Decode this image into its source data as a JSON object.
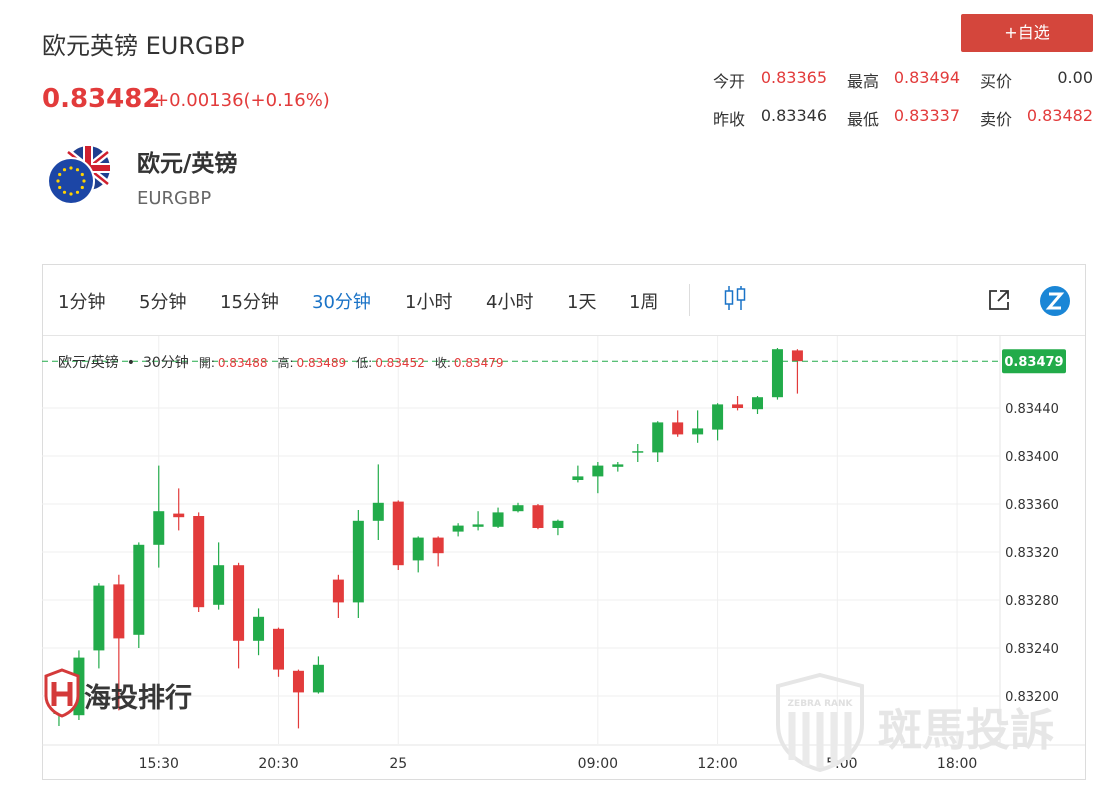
{
  "header": {
    "title": "欧元英镑 EURGBP",
    "price": "0.83482",
    "change": "+0.00136(+0.16%)",
    "button": "+自选"
  },
  "stats": [
    [
      {
        "label": "今开",
        "value": "0.83365"
      },
      {
        "label": "最高",
        "value": "0.83494"
      },
      {
        "label": "买价",
        "value": "0.00"
      }
    ],
    [
      {
        "label": "昨收",
        "value": "0.83346"
      },
      {
        "label": "最低",
        "value": "0.83337"
      },
      {
        "label": "卖价",
        "value": "0.83482"
      }
    ]
  ],
  "instrument": {
    "name": "欧元/英镑",
    "code": "EURGBP"
  },
  "toolbar": {
    "intervals": [
      "1分钟",
      "5分钟",
      "15分钟",
      "30分钟",
      "1小时",
      "4小时",
      "1天",
      "1周"
    ],
    "active": 3
  },
  "watermarks": [
    "海投排行",
    "ZEBRA RANK",
    "斑馬投訴"
  ],
  "chart_data": {
    "type": "candlestick",
    "legend": {
      "symbol": "欧元/英镑",
      "separator": "•",
      "interval": "30分钟",
      "fields": [
        {
          "label": "開:",
          "value": "0.83488"
        },
        {
          "label": "高:",
          "value": "0.83489"
        },
        {
          "label": "低:",
          "value": "0.83452"
        },
        {
          "label": "收:",
          "value": "0.83479"
        }
      ]
    },
    "categories": [
      null,
      null,
      null,
      null,
      null,
      "15:30",
      null,
      null,
      null,
      null,
      null,
      "20:30",
      null,
      null,
      null,
      null,
      null,
      "25",
      null,
      null,
      null,
      null,
      null,
      null,
      null,
      null,
      null,
      "09:00",
      null,
      null,
      null,
      null,
      null,
      "12:00",
      null,
      null,
      null,
      null,
      null,
      "15:00",
      null,
      null,
      null,
      null,
      null,
      "18:00",
      null,
      null
    ],
    "open": [
      0.83185,
      0.83184,
      0.83238,
      0.83293,
      0.83251,
      0.83326,
      0.83352,
      0.8335,
      0.83276,
      0.83309,
      0.83246,
      0.83256,
      0.83221,
      0.83203,
      0.83297,
      0.83278,
      0.83346,
      0.83362,
      0.83313,
      0.83332,
      0.83337,
      0.83341,
      0.83341,
      0.83354,
      0.83359,
      0.8334,
      0.8338,
      0.83383,
      0.83391,
      0.83403,
      0.83403,
      0.83428,
      0.83418,
      0.83422,
      0.83443,
      0.83439,
      0.83449,
      0.83488,
      null,
      null,
      null,
      null,
      null,
      null,
      null,
      null,
      null,
      null
    ],
    "high": [
      0.8321,
      0.83238,
      0.83294,
      0.83301,
      0.83328,
      0.83392,
      0.83373,
      0.83353,
      0.83328,
      0.83311,
      0.83273,
      0.83257,
      0.83222,
      0.83233,
      0.83301,
      0.83355,
      0.83393,
      0.83363,
      0.83333,
      0.83333,
      0.83344,
      0.83354,
      0.83357,
      0.83361,
      0.8336,
      0.83347,
      0.83392,
      0.83395,
      0.83395,
      0.8341,
      0.83429,
      0.83438,
      0.83438,
      0.83444,
      0.8345,
      0.8345,
      0.8349,
      0.83489,
      null,
      null,
      null,
      null,
      null,
      null,
      null,
      null,
      null,
      null
    ],
    "low": [
      0.83175,
      0.8318,
      0.83223,
      0.83188,
      0.8324,
      0.83307,
      0.83338,
      0.8327,
      0.83272,
      0.83223,
      0.83234,
      0.83216,
      0.83173,
      0.83202,
      0.83265,
      0.83265,
      0.8333,
      0.83305,
      0.83303,
      0.83308,
      0.83333,
      0.83338,
      0.8334,
      0.83353,
      0.83339,
      0.83334,
      0.83378,
      0.83369,
      0.83387,
      0.83395,
      0.83395,
      0.83416,
      0.83411,
      0.83413,
      0.83438,
      0.83435,
      0.83447,
      0.83452,
      null,
      null,
      null,
      null,
      null,
      null,
      null,
      null,
      null,
      null
    ],
    "close": [
      0.83205,
      0.83232,
      0.83292,
      0.83248,
      0.83326,
      0.83354,
      0.83349,
      0.83274,
      0.83309,
      0.83246,
      0.83266,
      0.83222,
      0.83203,
      0.83226,
      0.83278,
      0.83346,
      0.83361,
      0.83309,
      0.83332,
      0.83319,
      0.83342,
      0.83343,
      0.83353,
      0.83359,
      0.8334,
      0.83346,
      0.83383,
      0.83392,
      0.83393,
      0.83404,
      0.83428,
      0.83418,
      0.83423,
      0.83443,
      0.8344,
      0.83449,
      0.83489,
      0.83479,
      null,
      null,
      null,
      null,
      null,
      null,
      null,
      null,
      null,
      null
    ],
    "up_color": "#22ab4a",
    "down_color": "#e23b3b",
    "ylim": [
      0.8316,
      0.835
    ],
    "yticks": [
      {
        "value": 0.832,
        "label": "0.83200"
      },
      {
        "value": 0.8324,
        "label": "0.83240"
      },
      {
        "value": 0.8328,
        "label": "0.83280"
      },
      {
        "value": 0.8332,
        "label": "0.83320"
      },
      {
        "value": 0.8336,
        "label": "0.83360"
      },
      {
        "value": 0.834,
        "label": "0.83400"
      },
      {
        "value": 0.8344,
        "label": "0.83440"
      }
    ],
    "price_line": {
      "value": 0.83479,
      "label": "0.83479"
    },
    "grid": true
  }
}
